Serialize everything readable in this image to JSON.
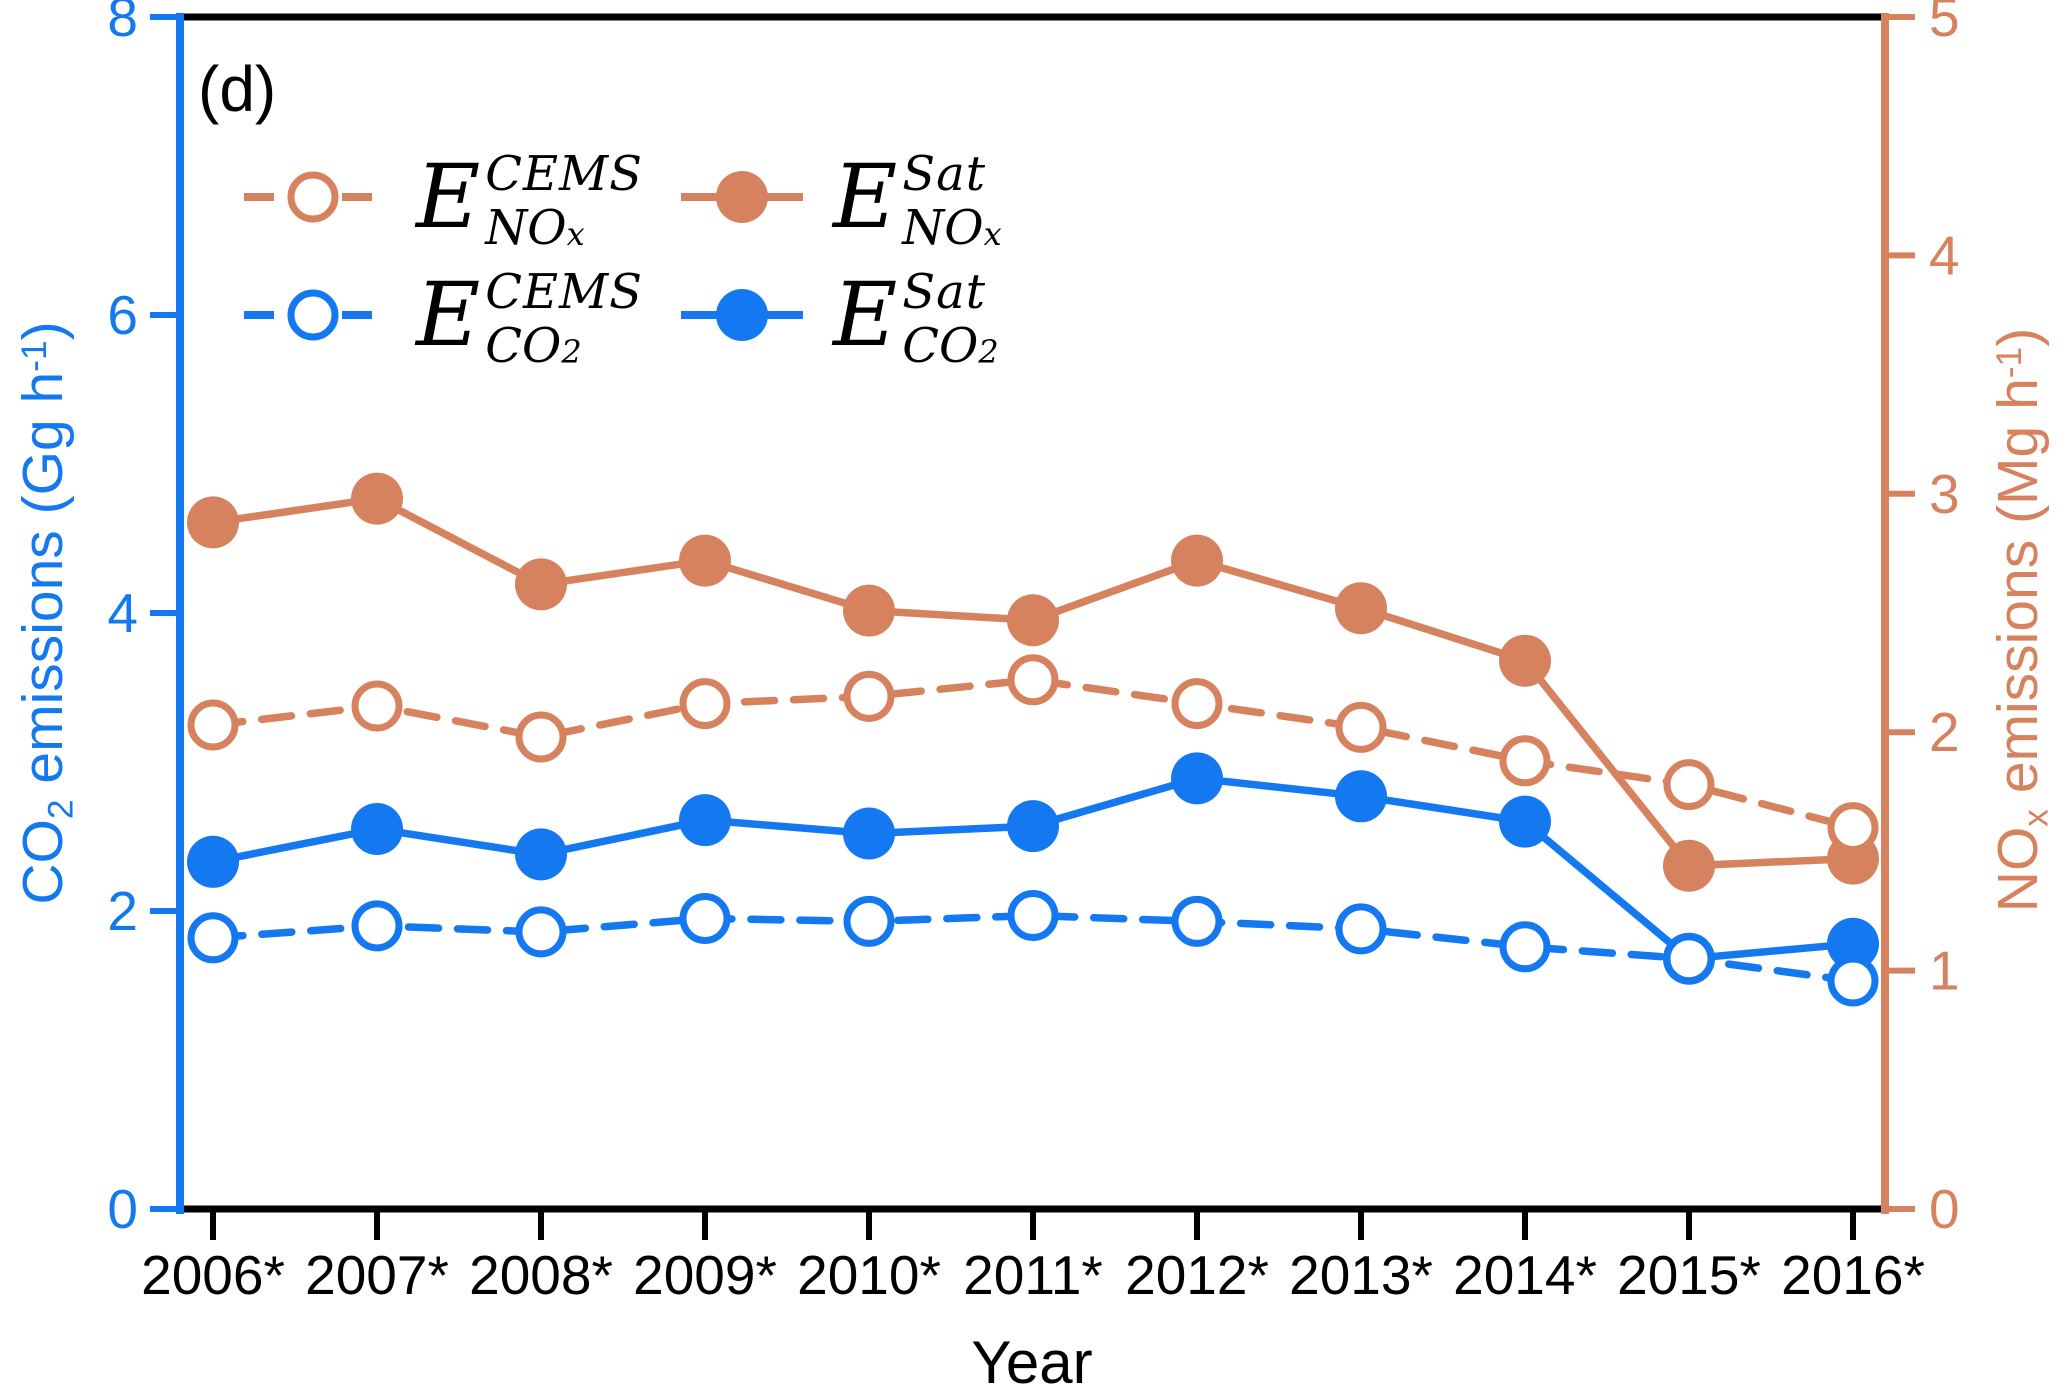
{
  "panel_label": "(d)",
  "chart_data": {
    "type": "line",
    "categories": [
      "2006*",
      "2007*",
      "2008*",
      "2009*",
      "2010*",
      "2011*",
      "2012*",
      "2013*",
      "2014*",
      "2015*",
      "2016*"
    ],
    "xlabel": "Year",
    "grid": false,
    "legend_position": "upper-left",
    "left_axis": {
      "color": "#1478F0",
      "range": [
        0,
        8
      ],
      "tick_labels": [
        "0",
        "2",
        "4",
        "6",
        "8"
      ],
      "tick_values": [
        0,
        2,
        4,
        6,
        8
      ],
      "label_parts": {
        "p1": "CO",
        "s1": "2",
        "p2": " emissions (Gg h",
        "e1": "-1",
        "p3": ")"
      }
    },
    "right_axis": {
      "color": "#D7825E",
      "range": [
        0,
        5
      ],
      "tick_labels": [
        "0",
        "1",
        "2",
        "3",
        "4",
        "5"
      ],
      "tick_values": [
        0,
        1,
        2,
        3,
        4,
        5
      ],
      "label_parts": {
        "p1": "NO",
        "s1": "x",
        "p2": " emissions (Mg h",
        "e1": "-1",
        "p3": ")"
      }
    },
    "series": [
      {
        "id": "cems_nox",
        "axis": "right",
        "style": "dashed",
        "marker": "open",
        "color": "#D7825E",
        "legend": {
          "base": "E",
          "sup": "CEMS",
          "sub": "NO",
          "subsub": "x"
        },
        "values": [
          2.03,
          2.11,
          1.98,
          2.12,
          2.15,
          2.22,
          2.12,
          2.02,
          1.88,
          1.78,
          1.6
        ]
      },
      {
        "id": "sat_nox",
        "axis": "right",
        "style": "solid",
        "marker": "filled",
        "color": "#D7825E",
        "legend": {
          "base": "E",
          "sup": "Sat",
          "sub": "NO",
          "subsub": "x"
        },
        "values": [
          2.88,
          2.98,
          2.62,
          2.72,
          2.51,
          2.47,
          2.72,
          2.52,
          2.3,
          1.44,
          1.47
        ]
      },
      {
        "id": "cems_co2",
        "axis": "left",
        "style": "dashed",
        "marker": "open",
        "color": "#1478F0",
        "legend": {
          "base": "E",
          "sup": "CEMS",
          "sub": "CO",
          "subsub": "2"
        },
        "values": [
          1.82,
          1.9,
          1.86,
          1.95,
          1.93,
          1.97,
          1.93,
          1.88,
          1.76,
          1.68,
          1.53
        ]
      },
      {
        "id": "sat_co2",
        "axis": "left",
        "style": "solid",
        "marker": "filled",
        "color": "#1478F0",
        "legend": {
          "base": "E",
          "sup": "Sat",
          "sub": "CO",
          "subsub": "2"
        },
        "values": [
          2.33,
          2.55,
          2.38,
          2.61,
          2.52,
          2.57,
          2.89,
          2.77,
          2.6,
          1.68,
          1.78
        ]
      }
    ]
  }
}
